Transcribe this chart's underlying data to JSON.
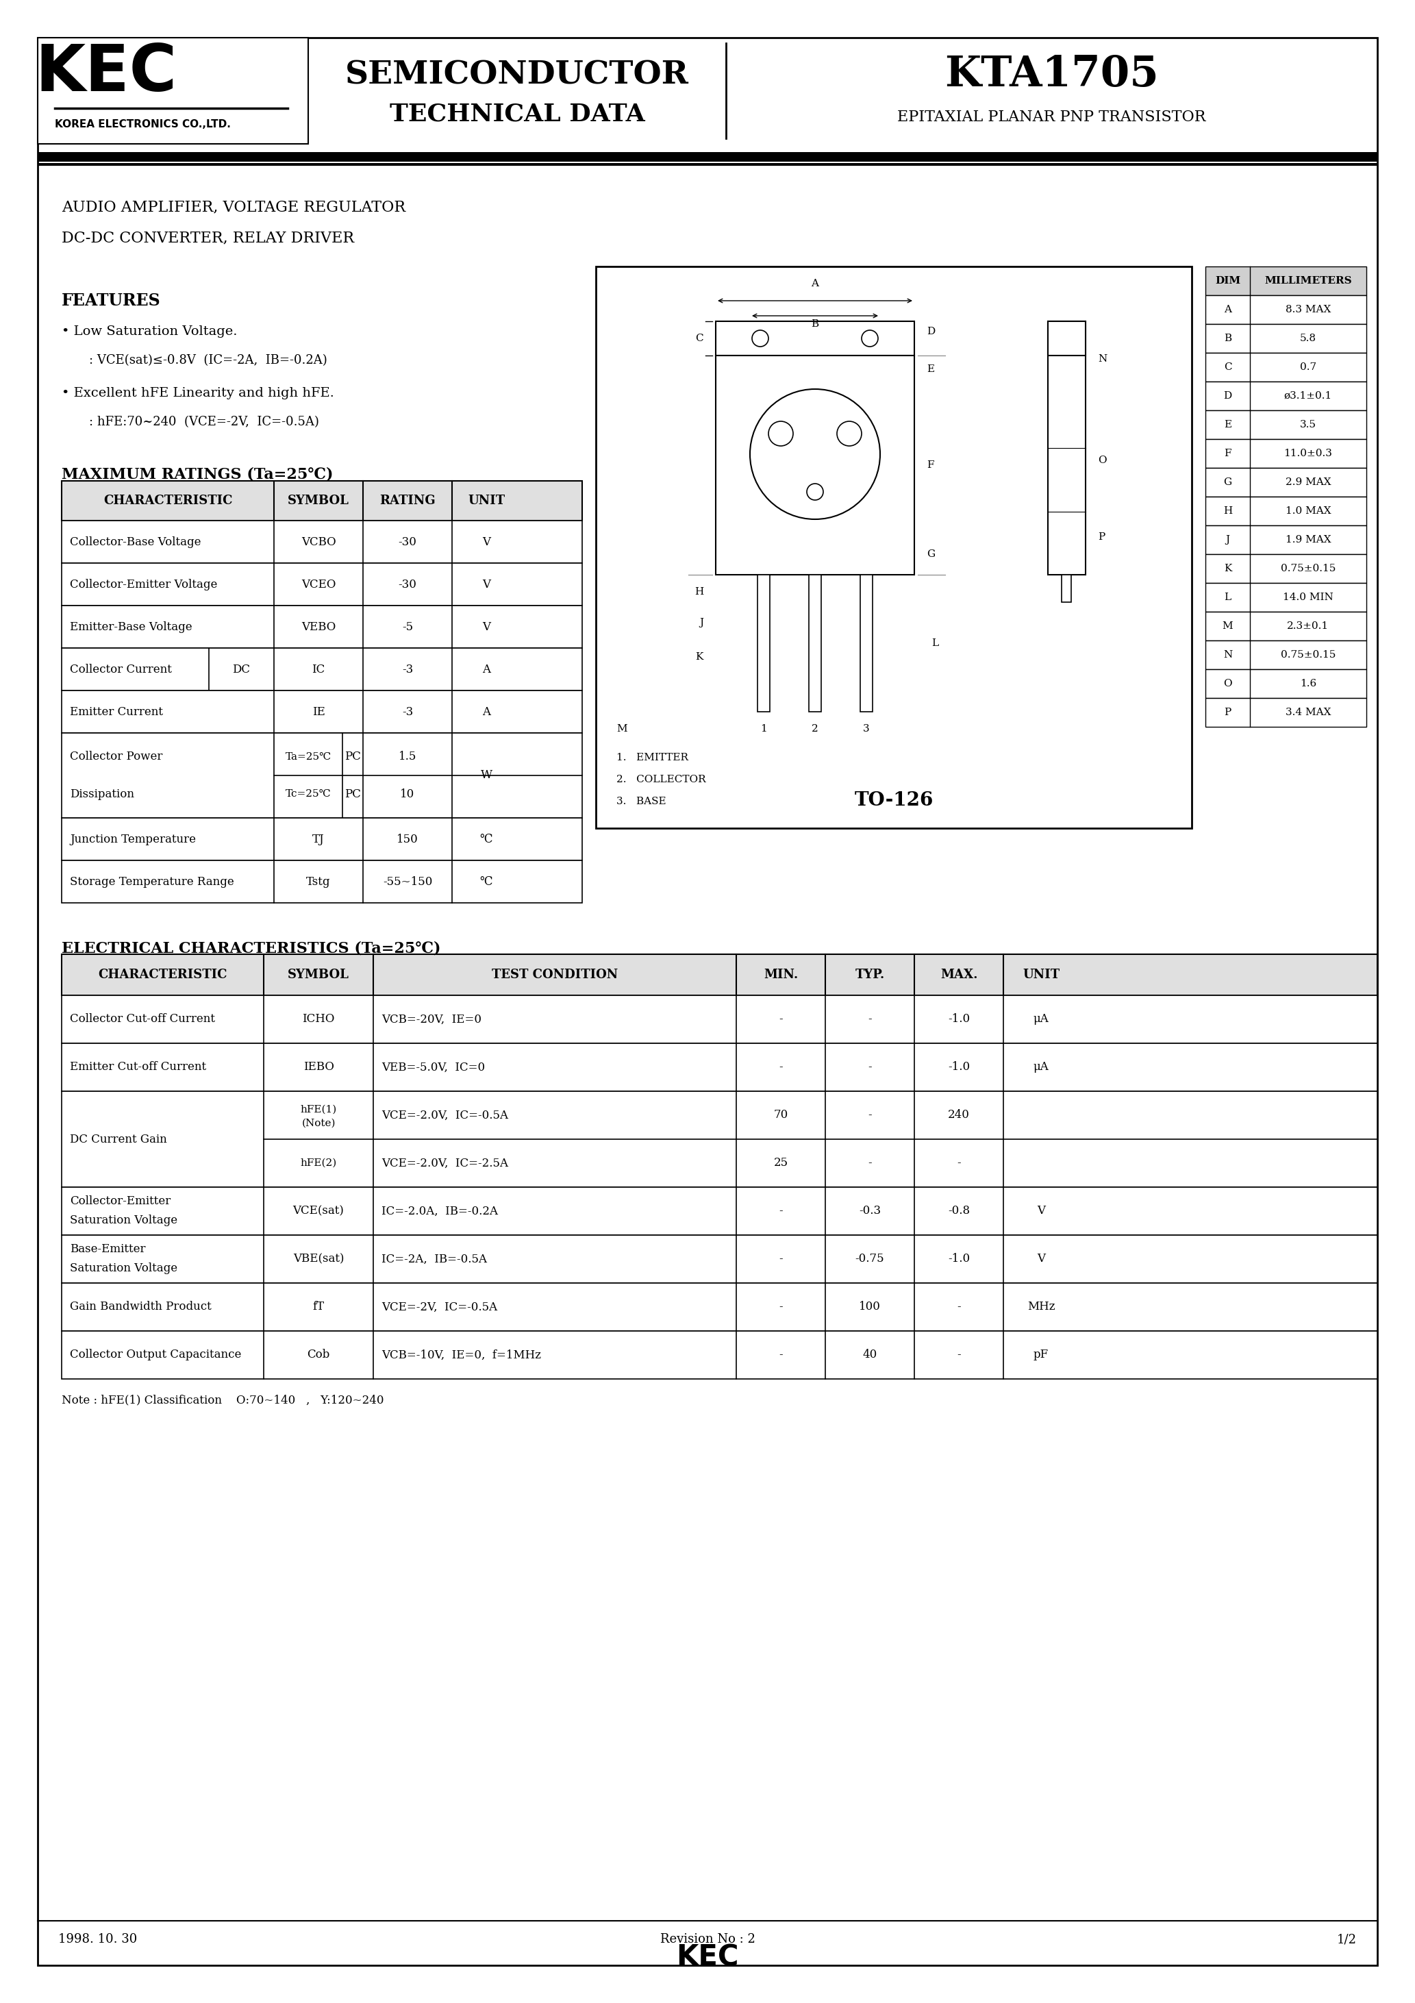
{
  "title_part": "KTA1705",
  "title_sub": "EPITAXIAL PLANAR PNP TRANSISTOR",
  "company": "KEC",
  "company_sub": "KOREA ELECTRONICS CO.,LTD.",
  "semi_title": "SEMICONDUCTOR",
  "semi_sub": "TECHNICAL DATA",
  "app_line1": "AUDIO AMPLIFIER, VOLTAGE REGULATOR",
  "app_line2": "DC-DC CONVERTER, RELAY DRIVER",
  "features_title": "FEATURES",
  "max_ratings_title": "MAXIMUM RATINGS (Ta=25°C)",
  "elec_title": "ELECTRICAL CHARACTERISTICS (Ta=25°C)",
  "note_text": "Note : hFE(1) Classification    O:70~140   ,   Y:120~240",
  "footer_left": "1998. 10. 30",
  "footer_mid": "Revision No : 2",
  "footer_kec": "KEC",
  "footer_right": "1/2",
  "dim_table": [
    [
      "DIM",
      "MILLIMETERS"
    ],
    [
      "A",
      "8.3 MAX"
    ],
    [
      "B",
      "5.8"
    ],
    [
      "C",
      "0.7"
    ],
    [
      "D",
      "ø3.1±0.1"
    ],
    [
      "E",
      "3.5"
    ],
    [
      "F",
      "11.0±0.3"
    ],
    [
      "G",
      "2.9 MAX"
    ],
    [
      "H",
      "1.0 MAX"
    ],
    [
      "J",
      "1.9 MAX"
    ],
    [
      "K",
      "0.75±0.15"
    ],
    [
      "L",
      "14.0 MIN"
    ],
    [
      "M",
      "2.3±0.1"
    ],
    [
      "N",
      "0.75±0.15"
    ],
    [
      "O",
      "1.6"
    ],
    [
      "P",
      "3.4 MAX"
    ]
  ],
  "package": "TO-126",
  "bg_color": "#ffffff"
}
